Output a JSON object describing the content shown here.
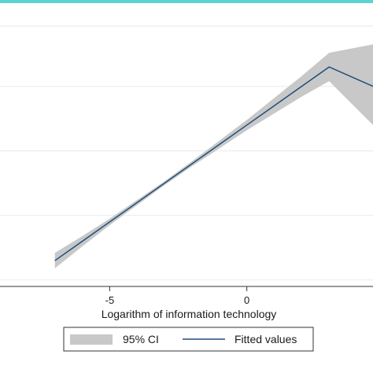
{
  "chart_data": {
    "type": "line",
    "xlabel": "Logarithm of information technology",
    "ylabel": "",
    "xlim": [
      -9,
      4.6
    ],
    "ylim": [
      -0.1,
      3.85
    ],
    "grid": true,
    "y_gridlines": [
      0,
      1,
      2,
      3
    ],
    "x_ticks": [
      {
        "value": -5,
        "label": "-5"
      },
      {
        "value": 0,
        "label": "0"
      }
    ],
    "series": [
      {
        "name": "Fitted values",
        "kind": "line",
        "color": "#1f4e79",
        "x": [
          -7,
          -6,
          -5,
          -4,
          -3,
          -2,
          -1,
          0,
          1,
          2,
          3,
          4.6
        ],
        "y": [
          0.3,
          0.6,
          0.9,
          1.2,
          1.5,
          1.8,
          2.1,
          2.4,
          2.7,
          3.0,
          3.3,
          3.0
        ]
      },
      {
        "name": "95% CI",
        "kind": "band",
        "color": "#c8c8c8",
        "x": [
          -7,
          -6,
          -5,
          -4,
          -3,
          -2,
          -1,
          0,
          1,
          2,
          3,
          4.6
        ],
        "lower": [
          0.18,
          0.52,
          0.85,
          1.16,
          1.47,
          1.76,
          2.04,
          2.32,
          2.58,
          2.84,
          3.08,
          2.4
        ],
        "upper": [
          0.42,
          0.68,
          0.95,
          1.24,
          1.53,
          1.84,
          2.16,
          2.48,
          2.82,
          3.16,
          3.52,
          3.65
        ]
      }
    ],
    "legend": {
      "placement": "bottom",
      "entries": [
        {
          "label": "95% CI",
          "kind": "band",
          "color": "#c8c8c8"
        },
        {
          "label": "Fitted values",
          "kind": "line",
          "color": "#1f4e79"
        }
      ]
    },
    "colors": {
      "top_bar": "#5fd3cf",
      "grid": "#e6eaee",
      "axis": "#333333",
      "frame": "#333333"
    }
  }
}
